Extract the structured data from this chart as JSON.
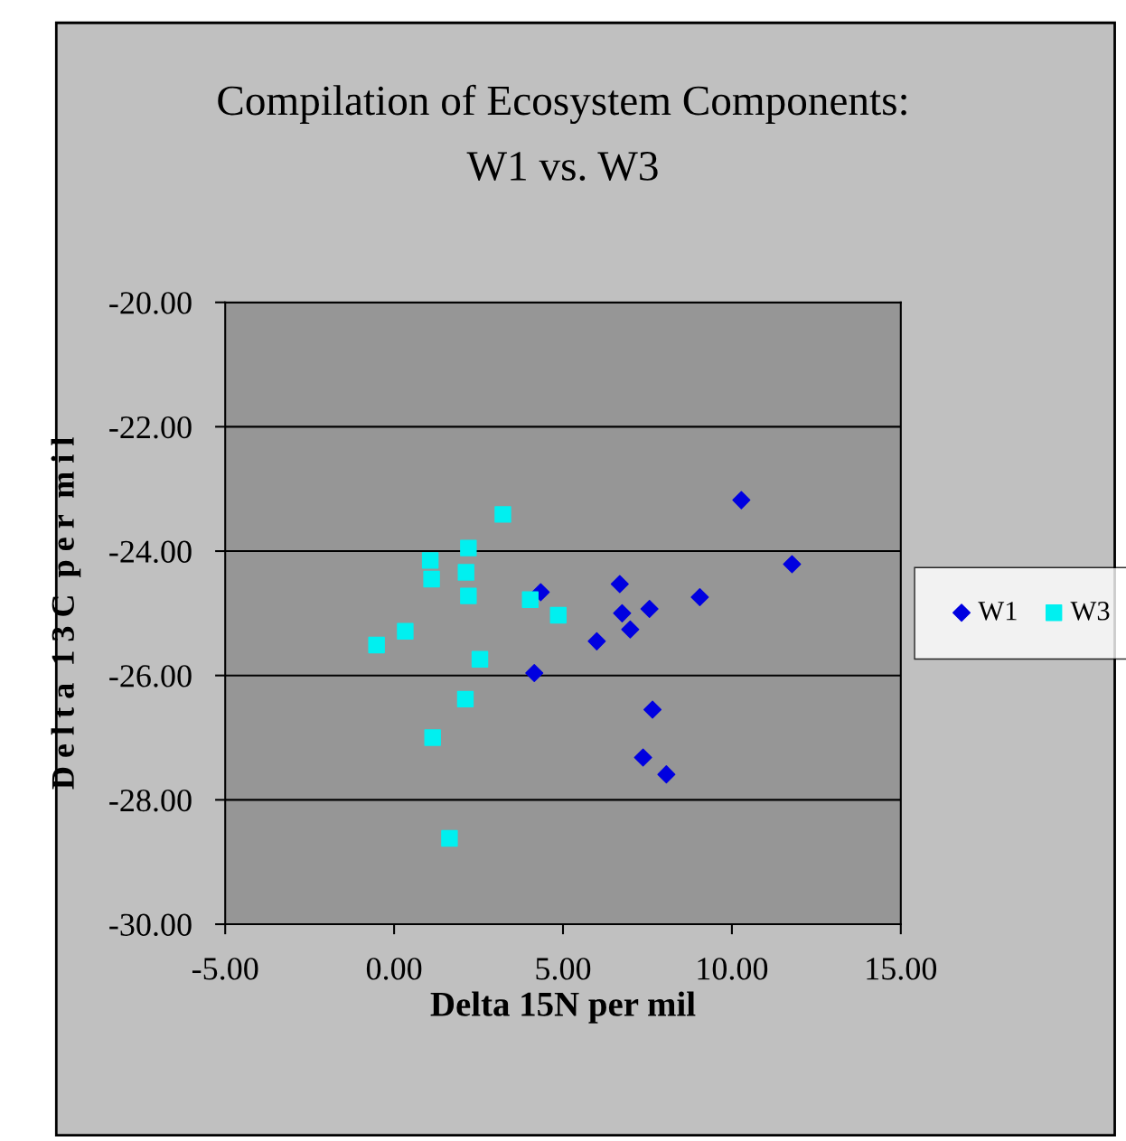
{
  "chart_data": {
    "type": "scatter",
    "title": "Compilation of Ecosystem Components:\nW1 vs. W3",
    "xlabel": "Delta 15N per mil",
    "ylabel": "D e l t a  1 3 C  p e r  m i l",
    "xlim": [
      -5,
      15
    ],
    "xticks": [
      {
        "value": -5,
        "label": "-5.00"
      },
      {
        "value": 0,
        "label": "0.00"
      },
      {
        "value": 5,
        "label": "5.00"
      },
      {
        "value": 10,
        "label": "10.00"
      },
      {
        "value": 15,
        "label": "15.00"
      }
    ],
    "ylim": [
      -30,
      -20
    ],
    "yticks": [
      {
        "value": -30,
        "label": "-30.00"
      },
      {
        "value": -28,
        "label": "-28.00"
      },
      {
        "value": -26,
        "label": "-26.00"
      },
      {
        "value": -24,
        "label": "-24.00"
      },
      {
        "value": -22,
        "label": "-22.00"
      },
      {
        "value": -20,
        "label": "-20.00"
      }
    ],
    "grid": "y",
    "legend": "right",
    "series": [
      {
        "name": "W1",
        "color": "#0000e0",
        "marker": "diamond",
        "x": [
          4.34,
          4.15,
          6.0,
          6.68,
          6.75,
          6.99,
          7.56,
          7.65,
          7.37,
          8.06,
          9.05,
          10.28,
          11.78
        ],
        "values": [
          -24.66,
          -25.96,
          -25.45,
          -24.53,
          -25.0,
          -25.26,
          -24.93,
          -26.55,
          -27.32,
          -27.59,
          -24.74,
          -23.18,
          -24.21
        ]
      },
      {
        "name": "W3",
        "color": "#00f0f0",
        "marker": "square",
        "x": [
          -0.52,
          0.33,
          1.07,
          1.11,
          2.2,
          2.13,
          2.2,
          2.54,
          2.11,
          1.14,
          1.64,
          3.22,
          4.03,
          4.86
        ],
        "values": [
          -25.51,
          -25.29,
          -24.15,
          -24.45,
          -23.95,
          -24.34,
          -24.72,
          -25.74,
          -26.38,
          -27.0,
          -28.62,
          -23.41,
          -24.78,
          -25.03
        ]
      }
    ]
  }
}
